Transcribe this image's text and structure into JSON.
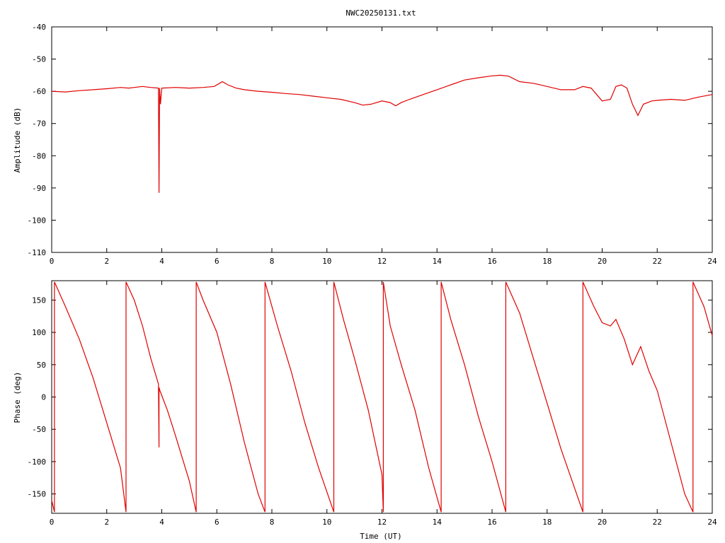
{
  "title": "NWC20250131.txt",
  "colors": {
    "series": "#e00000",
    "axes": "#000000",
    "background": "#ffffff"
  },
  "chart_data": [
    {
      "type": "line",
      "panel": "top",
      "title": "NWC20250131.txt",
      "xlabel": "",
      "ylabel": "Amplitude (dB)",
      "xlim": [
        0,
        24
      ],
      "ylim": [
        -110,
        -40
      ],
      "xticks": [
        0,
        2,
        4,
        6,
        8,
        10,
        12,
        14,
        16,
        18,
        20,
        22,
        24
      ],
      "yticks": [
        -110,
        -100,
        -90,
        -80,
        -70,
        -60,
        -50,
        -40
      ],
      "xtick_labels": [
        "0",
        "2",
        "4",
        "6",
        "8",
        "10",
        "12",
        "14",
        "16",
        "18",
        "20",
        "22",
        "24"
      ],
      "ytick_labels": [
        "-110",
        "-100",
        "-90",
        "-80",
        "-70",
        "-60",
        "-50",
        "-40"
      ],
      "grid": false,
      "series": [
        {
          "x": [
            0,
            0.5,
            1,
            1.5,
            2,
            2.5,
            2.8,
            3,
            3.3,
            3.6,
            3.88,
            3.9,
            3.92,
            3.95,
            4,
            4.5,
            5,
            5.5,
            5.9,
            6.1,
            6.2,
            6.4,
            6.7,
            7,
            7.5,
            8,
            8.5,
            9,
            9.5,
            10,
            10.5,
            11,
            11.3,
            11.6,
            12,
            12.3,
            12.5,
            12.7,
            13,
            13.5,
            14,
            14.5,
            15,
            15.5,
            16,
            16.3,
            16.6,
            17,
            17.5,
            18,
            18.5,
            19,
            19.3,
            19.6,
            19.8,
            20,
            20.3,
            20.5,
            20.7,
            20.9,
            21.1,
            21.3,
            21.5,
            21.8,
            22,
            22.5,
            23,
            23.5,
            24
          ],
          "y": [
            -60,
            -60.2,
            -59.8,
            -59.5,
            -59.2,
            -58.8,
            -59.0,
            -58.8,
            -58.5,
            -58.8,
            -59.0,
            -91.5,
            -59.0,
            -64,
            -59.0,
            -58.8,
            -59.0,
            -58.8,
            -58.5,
            -57.5,
            -57.0,
            -58.0,
            -59.0,
            -59.5,
            -60.0,
            -60.3,
            -60.7,
            -61.0,
            -61.5,
            -62.0,
            -62.5,
            -63.5,
            -64.3,
            -64.0,
            -63.0,
            -63.5,
            -64.5,
            -63.5,
            -62.5,
            -61.0,
            -59.5,
            -58.0,
            -56.5,
            -55.8,
            -55.2,
            -55.0,
            -55.3,
            -57.0,
            -57.5,
            -58.5,
            -59.5,
            -59.5,
            -58.5,
            -59.0,
            -61.0,
            -63.0,
            -62.5,
            -58.5,
            -58.0,
            -59.0,
            -64.0,
            -67.5,
            -64.0,
            -63.0,
            -62.8,
            -62.5,
            -62.8,
            -61.8,
            -61.0
          ]
        }
      ]
    },
    {
      "type": "line",
      "panel": "bottom",
      "title": "",
      "xlabel": "Time (UT)",
      "ylabel": "Phase (deg)",
      "xlim": [
        0,
        24
      ],
      "ylim": [
        -180,
        180
      ],
      "xticks": [
        0,
        2,
        4,
        6,
        8,
        10,
        12,
        14,
        16,
        18,
        20,
        22,
        24
      ],
      "yticks": [
        -150,
        -100,
        -50,
        0,
        50,
        100,
        150
      ],
      "xtick_labels": [
        "0",
        "2",
        "4",
        "6",
        "8",
        "10",
        "12",
        "14",
        "16",
        "18",
        "20",
        "22",
        "24"
      ],
      "ytick_labels": [
        "-150",
        "-100",
        "-50",
        "0",
        "50",
        "100",
        "150"
      ],
      "grid": false,
      "series": [
        {
          "x": [
            0,
            0.1,
            0.1,
            0.5,
            1,
            1.5,
            2,
            2.5,
            2.7,
            2.7,
            3,
            3.3,
            3.6,
            3.88,
            3.9,
            3.9,
            3.93,
            4.2,
            4.5,
            5.0,
            5.25,
            5.25,
            5.5,
            6.0,
            6.5,
            7.0,
            7.5,
            7.75,
            7.75,
            8.2,
            8.7,
            9.2,
            9.7,
            10.25,
            10.25,
            10.6,
            11.0,
            11.5,
            12.0,
            12.05,
            12.05,
            12.3,
            12.7,
            13.2,
            13.7,
            14.15,
            14.15,
            14.5,
            15.0,
            15.5,
            16.0,
            16.5,
            16.5,
            17.0,
            17.5,
            18.0,
            18.5,
            19.3,
            19.3,
            19.7,
            20.0,
            20.3,
            20.5,
            20.8,
            21.1,
            21.4,
            21.7,
            22.0,
            22.5,
            23.0,
            23.3,
            23.3,
            23.7,
            24.0
          ],
          "y": [
            -160,
            -178,
            178,
            140,
            90,
            30,
            -40,
            -110,
            -178,
            178,
            150,
            110,
            60,
            20,
            -78,
            15,
            10,
            -20,
            -60,
            -130,
            -178,
            178,
            150,
            100,
            20,
            -70,
            -150,
            -178,
            178,
            110,
            40,
            -40,
            -110,
            -178,
            178,
            120,
            60,
            -20,
            -120,
            -178,
            178,
            110,
            50,
            -20,
            -110,
            -178,
            178,
            120,
            50,
            -30,
            -100,
            -178,
            178,
            130,
            60,
            -10,
            -80,
            -178,
            178,
            140,
            115,
            110,
            120,
            90,
            50,
            78,
            40,
            10,
            -70,
            -150,
            -178,
            178,
            140,
            95
          ]
        }
      ]
    }
  ]
}
